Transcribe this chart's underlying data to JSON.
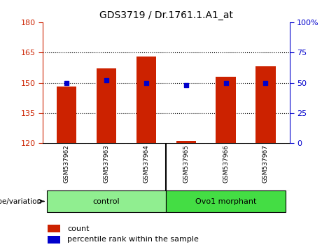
{
  "title": "GDS3719 / Dr.1761.1.A1_at",
  "samples": [
    "GSM537962",
    "GSM537963",
    "GSM537964",
    "GSM537965",
    "GSM537966",
    "GSM537967"
  ],
  "counts": [
    148,
    157,
    163,
    121,
    153,
    158
  ],
  "percentiles": [
    50,
    52,
    50,
    48,
    50,
    50
  ],
  "groups": [
    {
      "label": "control",
      "color": "#90EE90",
      "start": 0,
      "end": 2
    },
    {
      "label": "Ovo1 morphant",
      "color": "#44DD44",
      "start": 3,
      "end": 5
    }
  ],
  "ylim": [
    120,
    180
  ],
  "yticks": [
    120,
    135,
    150,
    165,
    180
  ],
  "y2lim": [
    0,
    100
  ],
  "y2ticks": [
    0,
    25,
    50,
    75,
    100
  ],
  "bar_color": "#CC2200",
  "dot_color": "#0000CC",
  "bar_width": 0.5,
  "legend_count_label": "count",
  "legend_pct_label": "percentile rank within the sample",
  "genotype_label": "genotype/variation",
  "left_axis_color": "#CC2200",
  "right_axis_color": "#0000CC",
  "tick_label_bg": "#CCCCCC",
  "group_border_color": "#000000",
  "gridline_ticks": [
    135,
    150,
    165
  ]
}
